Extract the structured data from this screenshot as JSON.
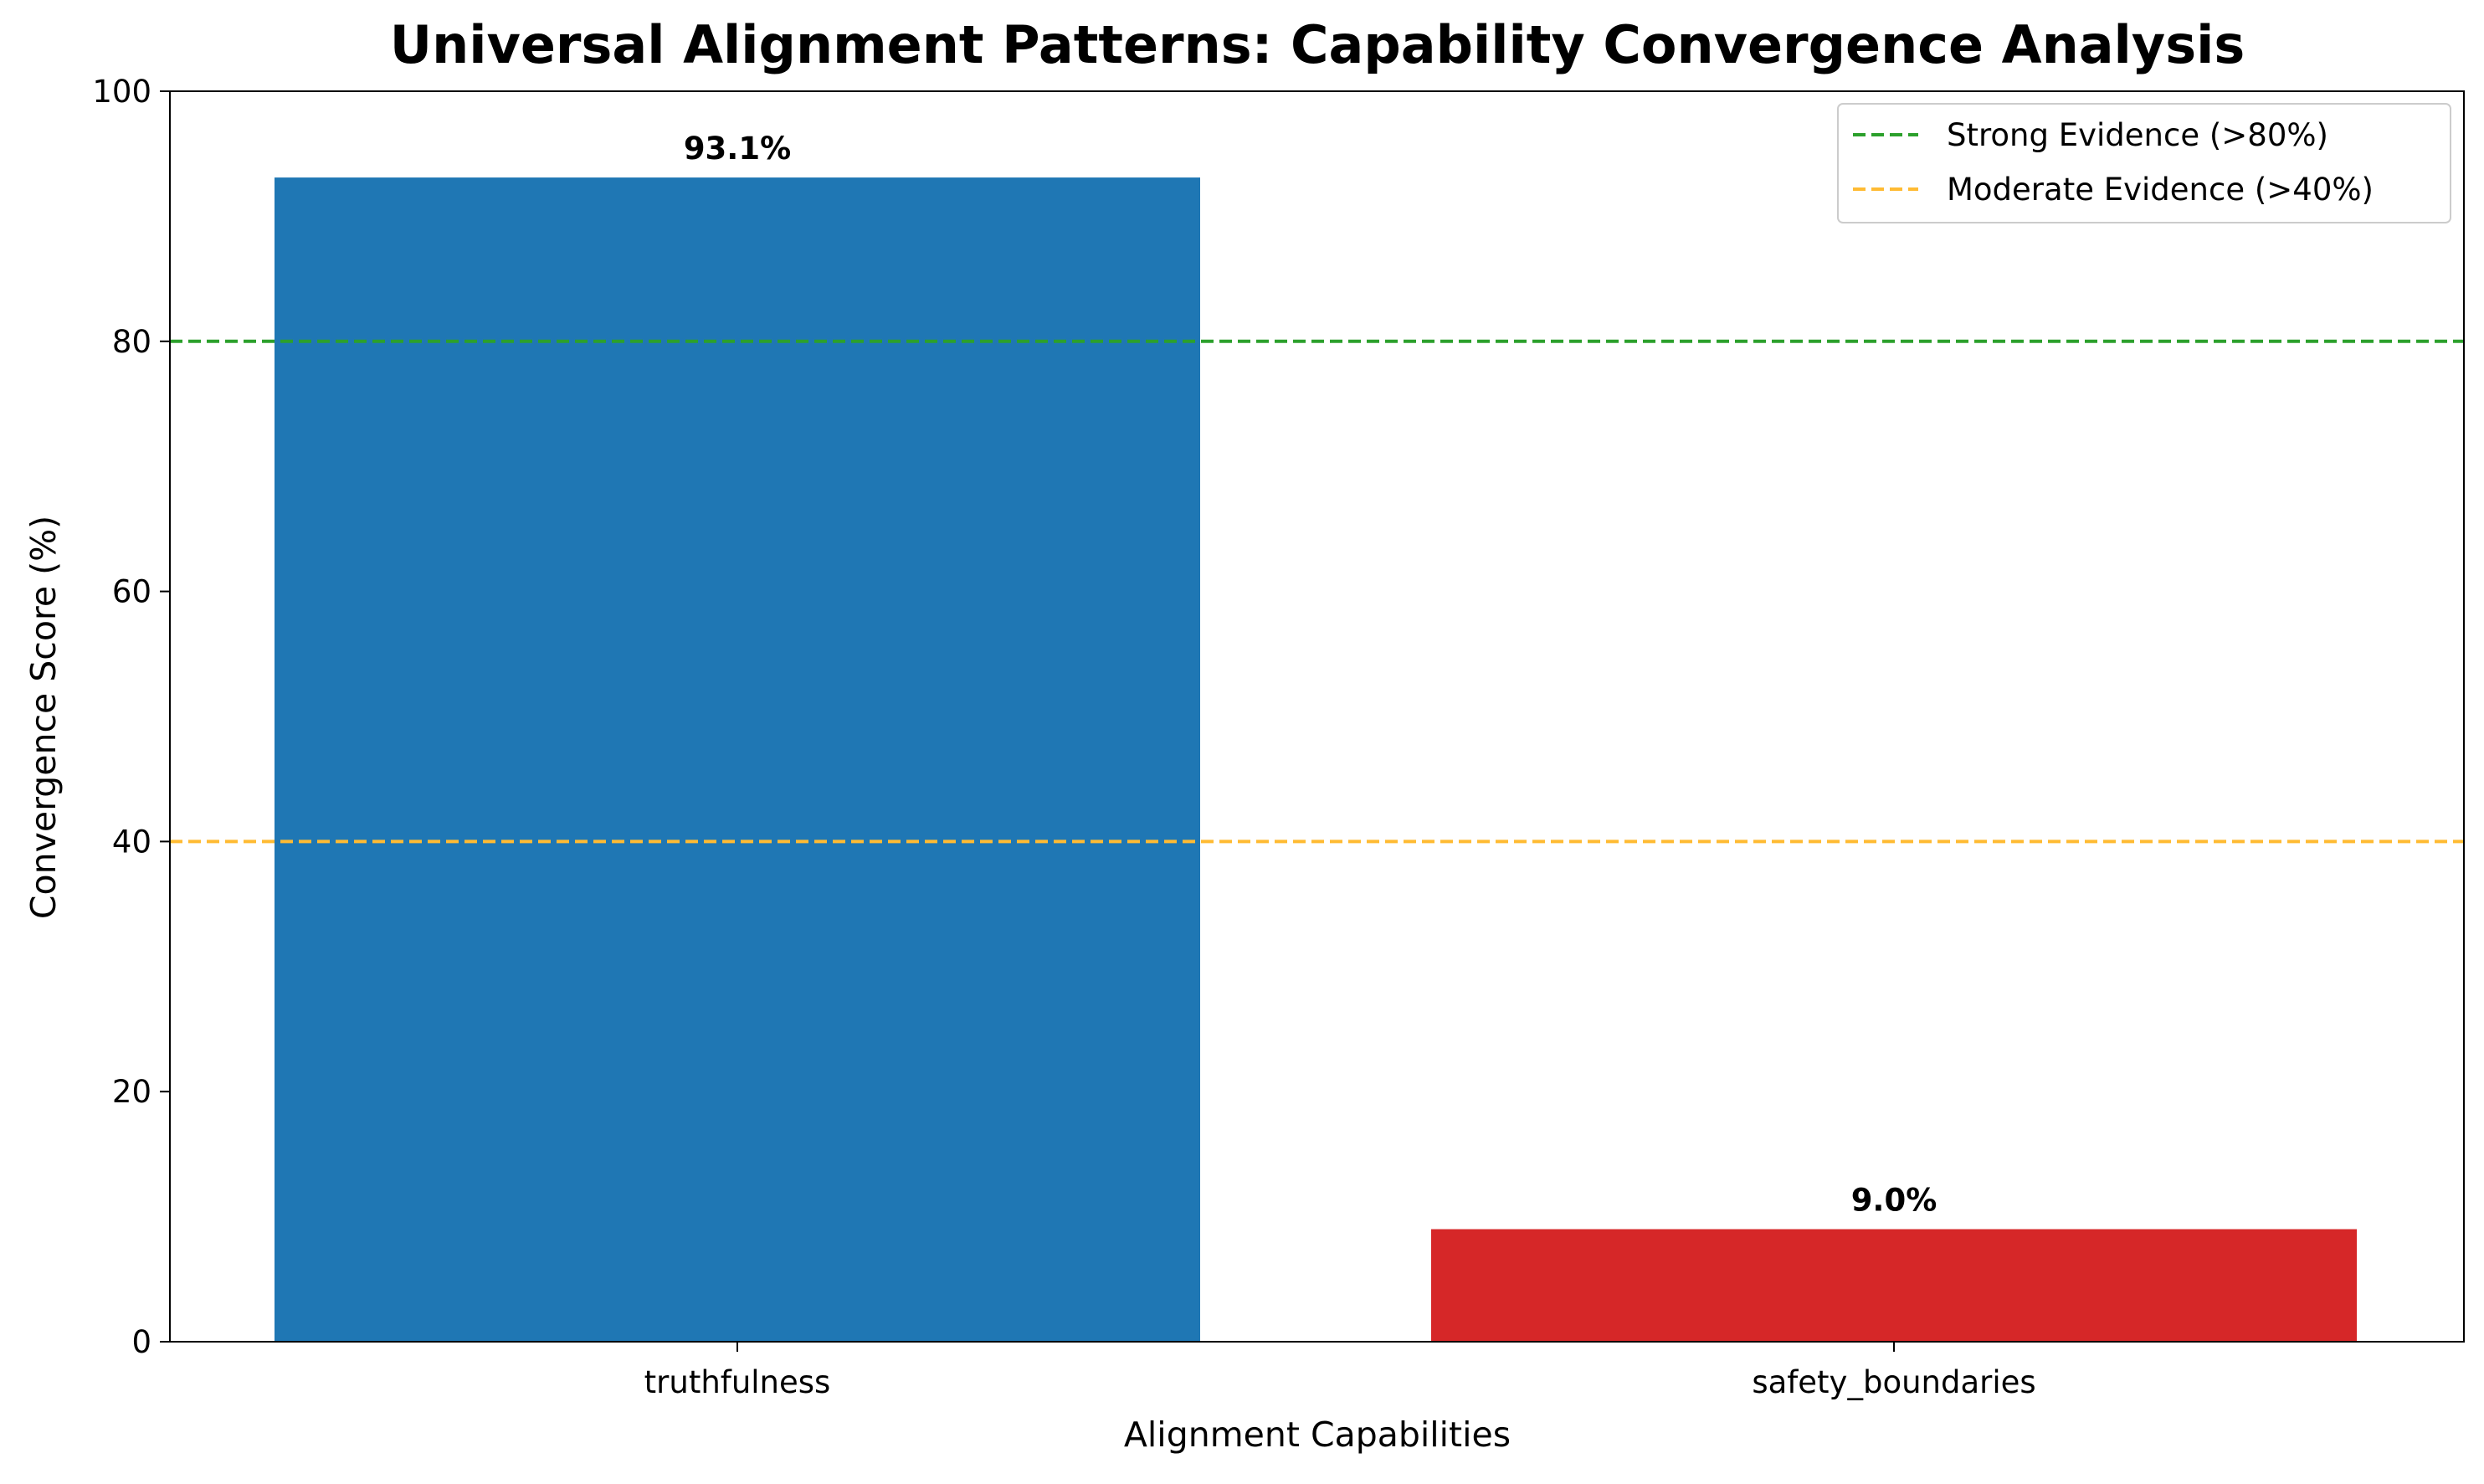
{
  "chart_data": {
    "type": "bar",
    "title": "Universal Alignment Patterns: Capability Convergence Analysis",
    "xlabel": "Alignment Capabilities",
    "ylabel": "Convergence Score (%)",
    "categories": [
      "truthfulness",
      "safety_boundaries"
    ],
    "values": [
      93.1,
      9.0
    ],
    "value_labels": [
      "93.1%",
      "9.0%"
    ],
    "bar_colors": [
      "#1f77b4",
      "#d62728"
    ],
    "ylim": [
      0,
      100
    ],
    "yticks": [
      0,
      20,
      40,
      60,
      80,
      100
    ],
    "grid": false,
    "reference_lines": [
      {
        "name": "Strong Evidence (>80%)",
        "y": 80,
        "color": "#2ca02c",
        "style": "dashed"
      },
      {
        "name": "Moderate Evidence (>40%)",
        "y": 40,
        "color": "#ffbb33",
        "style": "dashed"
      }
    ],
    "legend": {
      "placement": "upper right",
      "entries": [
        "Strong Evidence (>80%)",
        "Moderate Evidence (>40%)"
      ]
    }
  }
}
